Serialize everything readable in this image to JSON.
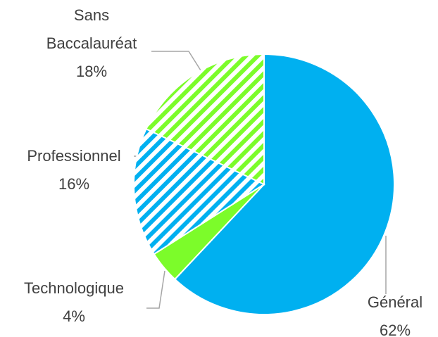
{
  "chart_data": {
    "type": "pie",
    "categories": [
      "Général",
      "Technologique",
      "Professionnel",
      "Sans Baccalauréat"
    ],
    "values": [
      62,
      4,
      16,
      18
    ],
    "value_labels": [
      "62%",
      "4%",
      "16%",
      "18%"
    ],
    "colors": [
      "#00b0f0",
      "#7cfc2a",
      "#00b0f0",
      "#7cfc2a"
    ],
    "hatched": [
      false,
      false,
      true,
      true
    ]
  }
}
